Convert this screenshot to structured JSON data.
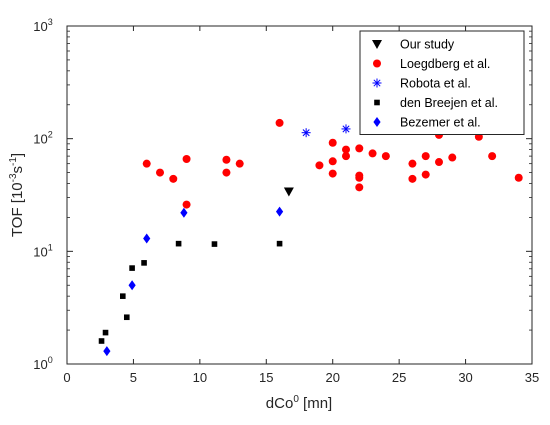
{
  "chart_data": {
    "type": "scatter",
    "xlabel": "dCo",
    "xlabel_superscript": "0",
    "xlabel_suffix": " [mn]",
    "ylabel": "TOF [10",
    "ylabel_superscript": "-3",
    "ylabel_suffix": "s",
    "ylabel_superscript2": "-1",
    "ylabel_end": "]",
    "xlim": [
      0,
      35
    ],
    "ylim": [
      1,
      1000
    ],
    "yscale": "log",
    "grid": false,
    "legend_position": "top-right",
    "x_ticks": [
      0,
      5,
      10,
      15,
      20,
      25,
      30,
      35
    ],
    "x_tick_labels": [
      "0",
      "5",
      "10",
      "15",
      "20",
      "25",
      "30",
      "35"
    ],
    "y_ticks": [
      1,
      10,
      100,
      1000
    ],
    "y_tick_labels": [
      {
        "base": "10",
        "exp": "0"
      },
      {
        "base": "10",
        "exp": "1"
      },
      {
        "base": "10",
        "exp": "2"
      },
      {
        "base": "10",
        "exp": "3"
      }
    ],
    "series": [
      {
        "name": "Our study",
        "marker": "triangle-down",
        "color": "#000000",
        "points": [
          [
            16.7,
            34
          ]
        ]
      },
      {
        "name": "Loegdberg et al.",
        "marker": "circle",
        "color": "#ff0000",
        "points": [
          [
            6,
            60
          ],
          [
            7,
            50
          ],
          [
            8,
            44
          ],
          [
            9,
            66
          ],
          [
            9,
            26
          ],
          [
            12,
            65
          ],
          [
            12,
            50
          ],
          [
            13,
            60
          ],
          [
            16,
            138
          ],
          [
            19,
            58
          ],
          [
            20,
            92
          ],
          [
            20,
            63
          ],
          [
            20,
            49
          ],
          [
            21,
            80
          ],
          [
            21,
            70
          ],
          [
            22,
            82
          ],
          [
            22,
            47
          ],
          [
            22,
            45
          ],
          [
            22,
            37
          ],
          [
            23,
            74
          ],
          [
            24,
            70
          ],
          [
            26,
            60
          ],
          [
            26,
            44
          ],
          [
            27,
            70
          ],
          [
            27,
            48
          ],
          [
            28,
            108
          ],
          [
            28,
            62
          ],
          [
            29,
            68
          ],
          [
            31,
            104
          ],
          [
            32,
            70
          ],
          [
            34,
            45
          ]
        ]
      },
      {
        "name": "Robota et al.",
        "marker": "asterisk",
        "color": "#0000ff",
        "points": [
          [
            18,
            113
          ],
          [
            21,
            122
          ]
        ]
      },
      {
        "name": "den Breejen et al.",
        "marker": "square",
        "color": "#000000",
        "points": [
          [
            2.6,
            1.6
          ],
          [
            2.9,
            1.9
          ],
          [
            4.2,
            4.0
          ],
          [
            4.5,
            2.6
          ],
          [
            4.9,
            7.1
          ],
          [
            5.8,
            7.9
          ],
          [
            8.4,
            11.7
          ],
          [
            11.1,
            11.6
          ],
          [
            16.0,
            11.7
          ]
        ]
      },
      {
        "name": "Bezemer et al.",
        "marker": "diamond",
        "color": "#0000ff",
        "points": [
          [
            3.0,
            1.3
          ],
          [
            4.9,
            5.0
          ],
          [
            6.0,
            13.0
          ],
          [
            8.8,
            22.0
          ],
          [
            16.0,
            22.5
          ]
        ]
      }
    ]
  }
}
